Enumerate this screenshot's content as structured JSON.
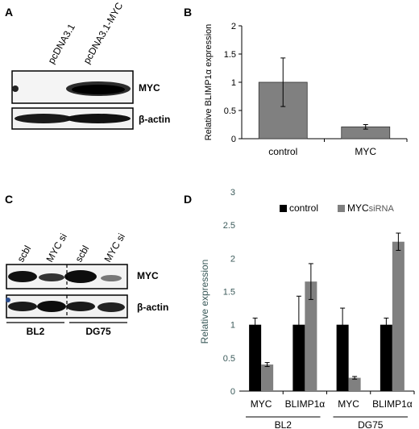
{
  "figure": {
    "panels": {
      "A": {
        "letter": "A",
        "lanes": [
          "pcDNA3.1",
          "pcDNA3.1-MYC"
        ],
        "bands": [
          "MYC",
          "β-actin"
        ]
      },
      "B": {
        "letter": "B",
        "chart_data": {
          "type": "bar",
          "categories": [
            "control",
            "MYC"
          ],
          "values": [
            1.0,
            0.21
          ],
          "errors": [
            0.43,
            0.04
          ],
          "ylabel": "Relative BLIMP1α expression",
          "xlabel": "",
          "ylim": [
            0,
            2
          ],
          "yticks": [
            "0",
            "0.5",
            "1",
            "1.5",
            "2"
          ],
          "grid": false,
          "color": "#808080"
        }
      },
      "C": {
        "letter": "C",
        "lanes": [
          "scbl",
          "MYC si",
          "scbl",
          "MYC si"
        ],
        "bands": [
          "MYC",
          "β-actin"
        ],
        "cell_lines": [
          "BL2",
          "DG75"
        ]
      },
      "D": {
        "letter": "D",
        "chart_data": {
          "type": "bar",
          "categories": [
            "MYC",
            "BLIMP1α",
            "MYC",
            "BLIMP1α"
          ],
          "groups": [
            "BL2",
            "DG75"
          ],
          "series": [
            {
              "name": "control",
              "values": [
                1.0,
                1.0,
                1.0,
                1.0
              ],
              "errors": [
                0.1,
                0.43,
                0.25,
                0.1
              ],
              "color": "#000000"
            },
            {
              "name": "MYCsiRNA",
              "values": [
                0.4,
                1.65,
                0.2,
                2.25
              ],
              "errors": [
                0.03,
                0.27,
                0.02,
                0.13
              ],
              "color": "#808080"
            }
          ],
          "legend": {
            "control": "control",
            "siRNA_main": "MYC",
            "siRNA_sub": "siRNA"
          },
          "ylabel": "Relative expression",
          "xlabel": "",
          "ylim": [
            0,
            3
          ],
          "yticks": [
            "0",
            "0.5",
            "1",
            "1.5",
            "2",
            "2.5",
            "3"
          ],
          "legend_position": "top",
          "grid": false
        }
      }
    }
  }
}
